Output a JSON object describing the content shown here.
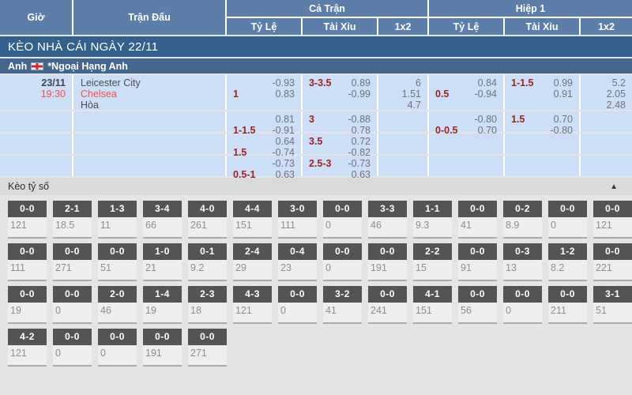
{
  "colors": {
    "header_blue": "#5d7ea9",
    "section_dark_blue": "#33608d",
    "league_blue": "#44658e",
    "row_light_blue": "#cddff6",
    "handicap_red": "#9d2424",
    "team_red": "#f1504a",
    "score_box_gray": "#545456"
  },
  "table": {
    "headers": {
      "gio": "Giờ",
      "tran_dau": "Trận Đấu",
      "ca_tran": "Cả Trận",
      "hiep_1": "Hiệp 1",
      "ty_le": "Tỷ Lệ",
      "tai_xiu": "Tài Xỉu",
      "one_x_two": "1x2"
    },
    "section_title": "KÈO NHÀ CÁI NGÀY 22/11",
    "league": {
      "country": "Anh",
      "flag": "england-flag",
      "name": "*Ngoại Hạng Anh"
    },
    "odds_rows": [
      {
        "gio": {
          "date": "23/11",
          "time": "19:30"
        },
        "match": {
          "home": "Leicester City",
          "away": "Chelsea",
          "draw": "Hòa"
        },
        "cells": [
          {
            "name": "ft-handicap",
            "type": "hc",
            "lines": [
              [
                "",
                "-0.93"
              ],
              [
                "1",
                "0.83"
              ]
            ]
          },
          {
            "name": "ft-overunder",
            "type": "hc",
            "lines": [
              [
                "3-3.5",
                "0.89"
              ],
              [
                "",
                "-0.99"
              ]
            ]
          },
          {
            "name": "ft-1x2",
            "type": "x2",
            "values": [
              "6",
              "1.51",
              "4.7"
            ]
          },
          {
            "name": "h1-handicap",
            "type": "hc",
            "lines": [
              [
                "",
                "0.84"
              ],
              [
                "0.5",
                "-0.94"
              ]
            ]
          },
          {
            "name": "h1-overunder",
            "type": "hc",
            "lines": [
              [
                "1-1.5",
                "0.99"
              ],
              [
                "",
                "0.91"
              ]
            ]
          },
          {
            "name": "h1-1x2",
            "type": "x2",
            "values": [
              "5.2",
              "2.05",
              "2.48"
            ]
          }
        ]
      },
      {
        "cells": [
          {
            "name": "ft-handicap",
            "type": "hc",
            "lines": [
              [
                "",
                "0.81"
              ],
              [
                "1-1.5",
                "-0.91"
              ]
            ]
          },
          {
            "name": "ft-overunder",
            "type": "hc",
            "lines": [
              [
                "3",
                "-0.88"
              ],
              [
                "",
                "0.78"
              ]
            ]
          },
          {
            "name": "ft-1x2",
            "type": "x2",
            "values": []
          },
          {
            "name": "h1-handicap",
            "type": "hc",
            "lines": [
              [
                "",
                "-0.80"
              ],
              [
                "0-0.5",
                "0.70"
              ]
            ]
          },
          {
            "name": "h1-overunder",
            "type": "hc",
            "lines": [
              [
                "1.5",
                "0.70"
              ],
              [
                "",
                "-0.80"
              ]
            ]
          },
          {
            "name": "h1-1x2",
            "type": "x2",
            "values": []
          }
        ]
      },
      {
        "cells": [
          {
            "name": "ft-handicap",
            "type": "hc",
            "lines": [
              [
                "",
                "0.64"
              ],
              [
                "1.5",
                "-0.74"
              ]
            ]
          },
          {
            "name": "ft-overunder",
            "type": "hc",
            "lines": [
              [
                "3.5",
                "0.72"
              ],
              [
                "",
                "-0.82"
              ]
            ]
          },
          {
            "name": "ft-1x2",
            "type": "x2",
            "values": []
          },
          {
            "name": "h1-handicap",
            "type": "hc",
            "lines": []
          },
          {
            "name": "h1-overunder",
            "type": "hc",
            "lines": []
          },
          {
            "name": "h1-1x2",
            "type": "x2",
            "values": []
          }
        ]
      },
      {
        "cells": [
          {
            "name": "ft-handicap",
            "type": "hc",
            "lines": [
              [
                "",
                "-0.73"
              ],
              [
                "0.5-1",
                "0.63"
              ]
            ]
          },
          {
            "name": "ft-overunder",
            "type": "hc",
            "lines": [
              [
                "2.5-3",
                "-0.73"
              ],
              [
                "",
                "0.63"
              ]
            ]
          },
          {
            "name": "ft-1x2",
            "type": "x2",
            "values": []
          },
          {
            "name": "h1-handicap",
            "type": "hc",
            "lines": []
          },
          {
            "name": "h1-overunder",
            "type": "hc",
            "lines": []
          },
          {
            "name": "h1-1x2",
            "type": "x2",
            "values": []
          }
        ]
      }
    ]
  },
  "score_section": {
    "title": "Kèo tỷ số",
    "collapse_icon": "▲",
    "rows": [
      [
        [
          "0-0",
          "121"
        ],
        [
          "2-1",
          "18.5"
        ],
        [
          "1-3",
          "11"
        ],
        [
          "3-4",
          "66"
        ],
        [
          "4-0",
          "261"
        ],
        [
          "4-4",
          "151"
        ],
        [
          "3-0",
          "111"
        ],
        [
          "0-0",
          "0"
        ],
        [
          "3-3",
          "46"
        ],
        [
          "1-1",
          "9.3"
        ],
        [
          "0-0",
          "41"
        ],
        [
          "0-2",
          "8.9"
        ],
        [
          "0-0",
          "0"
        ],
        [
          "0-0",
          "121"
        ]
      ],
      [
        [
          "0-0",
          "111"
        ],
        [
          "0-0",
          "271"
        ],
        [
          "0-0",
          "51"
        ],
        [
          "1-0",
          "21"
        ],
        [
          "0-1",
          "9.2"
        ],
        [
          "2-4",
          "29"
        ],
        [
          "0-4",
          "23"
        ],
        [
          "0-0",
          "0"
        ],
        [
          "0-0",
          "191"
        ],
        [
          "2-2",
          "15"
        ],
        [
          "0-0",
          "91"
        ],
        [
          "0-3",
          "13"
        ],
        [
          "1-2",
          "8.2"
        ],
        [
          "0-0",
          "221"
        ]
      ],
      [
        [
          "0-0",
          "19"
        ],
        [
          "0-0",
          "0"
        ],
        [
          "2-0",
          "46"
        ],
        [
          "1-4",
          "19"
        ],
        [
          "2-3",
          "18"
        ],
        [
          "4-3",
          "121"
        ],
        [
          "0-0",
          "0"
        ],
        [
          "3-2",
          "41"
        ],
        [
          "0-0",
          "241"
        ],
        [
          "4-1",
          "151"
        ],
        [
          "0-0",
          "56"
        ],
        [
          "0-0",
          "0"
        ],
        [
          "0-0",
          "211"
        ],
        [
          "3-1",
          "51"
        ]
      ],
      [
        [
          "4-2",
          "121"
        ],
        [
          "0-0",
          "0"
        ],
        [
          "0-0",
          "0"
        ],
        [
          "0-0",
          "191"
        ],
        [
          "0-0",
          "271"
        ]
      ]
    ]
  }
}
